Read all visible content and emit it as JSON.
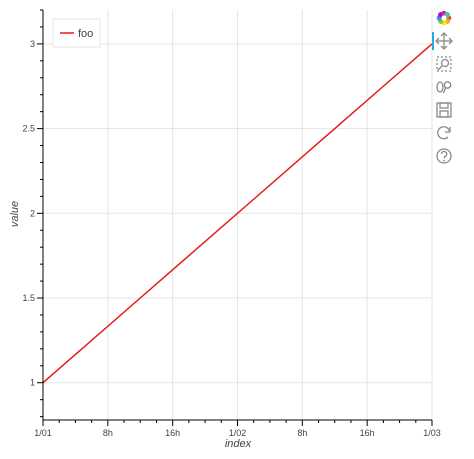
{
  "chart_data": {
    "type": "line",
    "x": [
      "1/01 00:00",
      "1/03 00:00"
    ],
    "series": [
      {
        "name": "foo",
        "x": [
          "1/01 00:00",
          "1/03 00:00"
        ],
        "y": [
          1,
          3
        ],
        "color": "#e31a1c"
      }
    ],
    "xlabel": "index",
    "ylabel": "value",
    "x_ticks": [
      "1/01",
      "8h",
      "16h",
      "1/02",
      "8h",
      "16h",
      "1/03"
    ],
    "x_tick_hours": [
      0,
      8,
      16,
      24,
      32,
      40,
      48
    ],
    "xlim_hours": [
      0,
      48
    ],
    "y_ticks": [
      "1",
      "1.5",
      "2",
      "2.5",
      "3"
    ],
    "y_tick_values": [
      1,
      1.5,
      2,
      2.5,
      3
    ],
    "ylim": [
      0.78,
      3.2
    ],
    "grid": true,
    "legend_position": "top-left"
  },
  "toolbar": {
    "tools": [
      {
        "name": "bokeh-logo-icon",
        "interactable": false
      },
      {
        "name": "pan-tool-icon",
        "interactable": true,
        "active": true
      },
      {
        "name": "box-zoom-tool-icon",
        "interactable": true
      },
      {
        "name": "wheel-zoom-tool-icon",
        "interactable": true
      },
      {
        "name": "save-tool-icon",
        "interactable": true
      },
      {
        "name": "reset-tool-icon",
        "interactable": true
      },
      {
        "name": "help-tool-icon",
        "interactable": true
      }
    ],
    "active_color": "#26aae1"
  }
}
